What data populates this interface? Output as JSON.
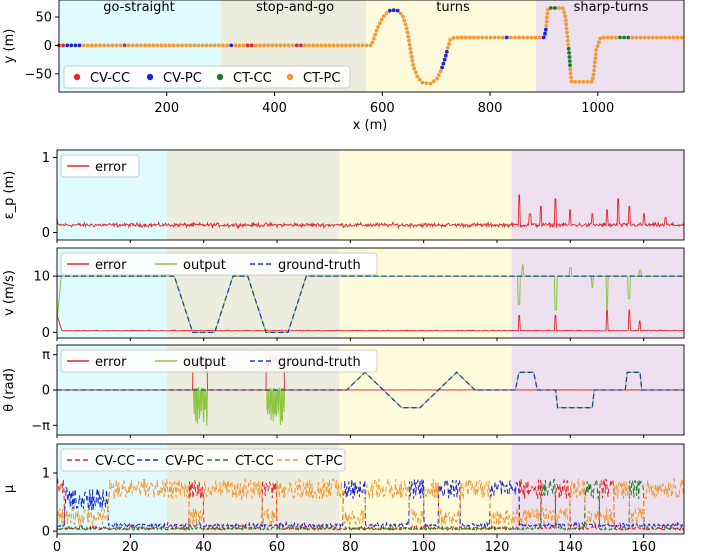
{
  "figure": {
    "phases": [
      "go-straight",
      "stop-and-go",
      "turns",
      "sharp-turns"
    ],
    "phase_colors": [
      "#e0fbfd",
      "#ececdf",
      "#fdfbdc",
      "#ede1ef"
    ]
  },
  "chart_data": [
    {
      "type": "scatter",
      "panel": "trajectory",
      "xlabel": "x (m)",
      "ylabel": "y (m)",
      "xlim": [
        0,
        1160
      ],
      "ylim": [
        -82,
        80
      ],
      "xticks": [
        "200",
        "400",
        "600",
        "800",
        "1000"
      ],
      "yticks": [
        "50",
        "0",
        "−50"
      ],
      "phase_bounds_x": [
        0,
        300,
        570,
        885,
        1160
      ],
      "series": [
        {
          "name": "CV-CC",
          "color": "#e4262c"
        },
        {
          "name": "CV-PC",
          "color": "#1f25d6"
        },
        {
          "name": "CT-CC",
          "color": "#1f7a2c"
        },
        {
          "name": "CT-PC",
          "color": "#f39a36"
        }
      ],
      "path": [
        [
          0,
          0
        ],
        [
          580,
          0
        ],
        [
          585,
          14
        ],
        [
          590,
          28
        ],
        [
          597,
          42
        ],
        [
          605,
          55
        ],
        [
          615,
          62
        ],
        [
          628,
          62
        ],
        [
          638,
          52
        ],
        [
          644,
          35
        ],
        [
          648,
          18
        ],
        [
          651,
          0
        ],
        [
          654,
          -18
        ],
        [
          658,
          -38
        ],
        [
          665,
          -55
        ],
        [
          675,
          -66
        ],
        [
          690,
          -67
        ],
        [
          702,
          -58
        ],
        [
          710,
          -42
        ],
        [
          716,
          -25
        ],
        [
          720,
          -10
        ],
        [
          726,
          10
        ],
        [
          734,
          14
        ],
        [
          820,
          14
        ],
        [
          900,
          14
        ],
        [
          903,
          24
        ],
        [
          905,
          40
        ],
        [
          906,
          55
        ],
        [
          908,
          66
        ],
        [
          935,
          66
        ],
        [
          940,
          50
        ],
        [
          942,
          30
        ],
        [
          944,
          14
        ],
        [
          946,
          -5
        ],
        [
          948,
          -25
        ],
        [
          949,
          -45
        ],
        [
          951,
          -64
        ],
        [
          990,
          -64
        ],
        [
          993,
          -45
        ],
        [
          995,
          -25
        ],
        [
          997,
          -8
        ],
        [
          1000,
          0
        ],
        [
          1005,
          14
        ],
        [
          1050,
          14
        ],
        [
          1160,
          14
        ]
      ]
    },
    {
      "type": "line",
      "panel": "position-error",
      "ylabel": "ε_p (m)",
      "xlim": [
        0,
        171
      ],
      "ylim": [
        -0.1,
        1.1
      ],
      "yticks": [
        "0",
        "1"
      ],
      "phase_bounds_t": [
        0,
        30,
        77,
        124,
        171
      ],
      "legend": "top-left",
      "series": [
        {
          "name": "error",
          "color": "#e4262c",
          "base": 0.1,
          "noise": 0.04,
          "spikes": [
            [
              126,
              0.5
            ],
            [
              129,
              0.25
            ],
            [
              132,
              0.35
            ],
            [
              136,
              0.45
            ],
            [
              140,
              0.3
            ],
            [
              146,
              0.25
            ],
            [
              150,
              0.3
            ],
            [
              153,
              0.45
            ],
            [
              156,
              0.35
            ],
            [
              160,
              0.25
            ],
            [
              166,
              0.2
            ]
          ]
        }
      ]
    },
    {
      "type": "line",
      "panel": "velocity",
      "ylabel": "v (m/s)",
      "xlim": [
        0,
        171
      ],
      "ylim": [
        -1,
        15
      ],
      "yticks": [
        "0",
        "10"
      ],
      "legend": "top-left",
      "ground_truth": [
        [
          0,
          10
        ],
        [
          32,
          10
        ],
        [
          37,
          0
        ],
        [
          43,
          0
        ],
        [
          48,
          10
        ],
        [
          52,
          10
        ],
        [
          57,
          0
        ],
        [
          63,
          0
        ],
        [
          68,
          10
        ],
        [
          171,
          10
        ]
      ],
      "series": [
        {
          "name": "error",
          "color": "#e4262c"
        },
        {
          "name": "output",
          "color": "#8cc63e"
        },
        {
          "name": "ground-truth",
          "color": "#1f3fb0",
          "dashed": true
        }
      ],
      "output_glitches": [
        [
          126,
          -5
        ],
        [
          127,
          2
        ],
        [
          136,
          -6
        ],
        [
          140,
          1.5
        ],
        [
          146,
          -2
        ],
        [
          150,
          -6
        ],
        [
          156,
          -4
        ],
        [
          159,
          1
        ]
      ],
      "error_spikes": [
        [
          126,
          3
        ],
        [
          136,
          3
        ],
        [
          150,
          4
        ],
        [
          156,
          4
        ],
        [
          159,
          2
        ]
      ]
    },
    {
      "type": "line",
      "panel": "heading",
      "ylabel": "θ (rad)",
      "xlim": [
        0,
        171
      ],
      "ylim": [
        -4,
        4
      ],
      "yticks": [
        "π",
        "0",
        "−π"
      ],
      "legend": "top-left",
      "ground_truth": [
        [
          0,
          0
        ],
        [
          79,
          0
        ],
        [
          84,
          1.57
        ],
        [
          89,
          0
        ],
        [
          94,
          -1.57
        ],
        [
          99,
          -1.57
        ],
        [
          104,
          0
        ],
        [
          109,
          1.57
        ],
        [
          114,
          0
        ],
        [
          125,
          0
        ],
        [
          126,
          1.57
        ],
        [
          130,
          1.57
        ],
        [
          131,
          0
        ],
        [
          136,
          0
        ],
        [
          136.5,
          -1.57
        ],
        [
          146,
          -1.57
        ],
        [
          146.5,
          0
        ],
        [
          155,
          0
        ],
        [
          155.5,
          1.57
        ],
        [
          159,
          1.57
        ],
        [
          159.5,
          0
        ],
        [
          171,
          0
        ]
      ],
      "series": [
        {
          "name": "error",
          "color": "#e4262c"
        },
        {
          "name": "output",
          "color": "#8cc63e"
        },
        {
          "name": "ground-truth",
          "color": "#1f3fb0",
          "dashed": true
        }
      ],
      "unwrap_bursts": [
        [
          37,
          41
        ],
        [
          57,
          62
        ]
      ]
    },
    {
      "type": "line",
      "panel": "model-probability",
      "ylabel": "μ",
      "xlim": [
        0,
        171
      ],
      "ylim": [
        -0.05,
        1.5
      ],
      "yticks": [
        "0",
        "1"
      ],
      "xticks": [
        "0",
        "20",
        "40",
        "60",
        "80",
        "100",
        "120",
        "140",
        "160"
      ],
      "legend": "top-left",
      "series": [
        {
          "name": "CV-CC",
          "color": "#e4262c",
          "dashed": true
        },
        {
          "name": "CV-PC",
          "color": "#1f25d6",
          "dashed": true
        },
        {
          "name": "CT-CC",
          "color": "#1f7a2c",
          "dashed": true
        },
        {
          "name": "CT-PC",
          "color": "#f39a36",
          "dashed": true
        }
      ]
    }
  ]
}
